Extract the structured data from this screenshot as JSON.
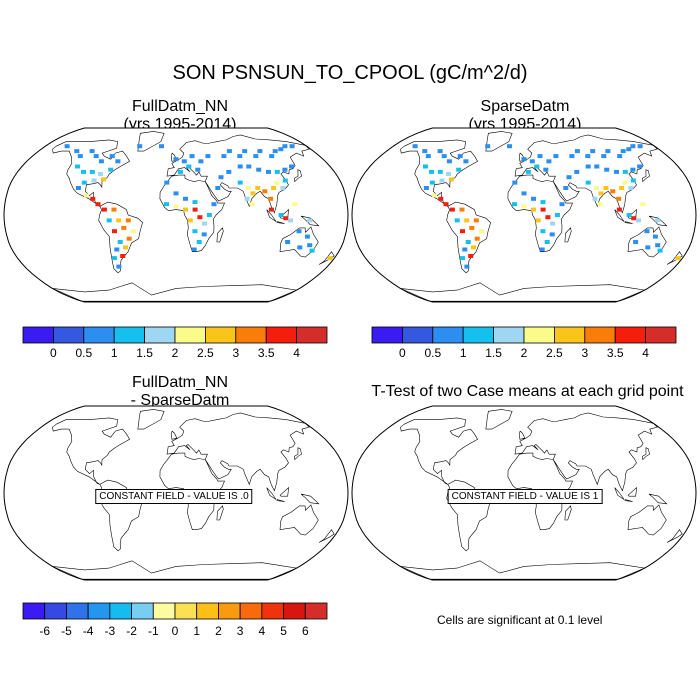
{
  "page_title": "SON PSNSUN_TO_CPOOL (gC/m^2/d)",
  "panels": {
    "top_left": {
      "title_line1": "FullDatm_NN",
      "title_line2": "(yrs 1995-2014)"
    },
    "top_right": {
      "title_line1": "SparseDatm",
      "title_line2": "(yrs 1995-2014)"
    },
    "bottom_left": {
      "title_line1": "FullDatm_NN",
      "title_line2": "- SparseDatm",
      "constant_field": "CONSTANT FIELD - VALUE IS .0"
    },
    "bottom_right": {
      "title_line1": "T-Test of two Case means at each grid point",
      "constant_field": "CONSTANT FIELD - VALUE IS 1"
    }
  },
  "note": "Cells are significant at 0.1 level",
  "colorbars": {
    "abs": {
      "colors": [
        "#3a1bf2",
        "#3558e0",
        "#2b8ef0",
        "#15c0ee",
        "#9fd7f2",
        "#fbfb8a",
        "#fbc41a",
        "#fa7d0a",
        "#f51d0c",
        "#d42d2a"
      ],
      "labels": [
        "0",
        "0.5",
        "1",
        "1.5",
        "2",
        "2.5",
        "3",
        "3.5",
        "4"
      ]
    },
    "diff": {
      "colors": [
        "#3a1bf2",
        "#3649e4",
        "#2f72ea",
        "#2396ef",
        "#16bcf0",
        "#78cdf3",
        "#fbfba0",
        "#fbe054",
        "#fbbf18",
        "#f99b0e",
        "#f86a0a",
        "#f0330c",
        "#d7160f",
        "#d42d2a"
      ],
      "labels": [
        "-6",
        "-5",
        "-4",
        "-3",
        "-2",
        "-1",
        "0",
        "1",
        "2",
        "3",
        "4",
        "5",
        "6"
      ]
    }
  },
  "chart_data": [
    {
      "type": "heatmap",
      "title": "FullDatm_NN",
      "subtitle": "(yrs 1995-2014)",
      "projection": "Robinson",
      "color_levels": [
        0,
        0.5,
        1,
        1.5,
        2,
        2.5,
        3,
        3.5,
        4
      ],
      "points": [
        {
          "lon": -150,
          "lat": 65,
          "v": 0.7
        },
        {
          "lon": -130,
          "lat": 60,
          "v": 0.6
        },
        {
          "lon": -120,
          "lat": 55,
          "v": 0.8
        },
        {
          "lon": -110,
          "lat": 60,
          "v": 0.5
        },
        {
          "lon": -100,
          "lat": 55,
          "v": 0.7
        },
        {
          "lon": -90,
          "lat": 50,
          "v": 0.9
        },
        {
          "lon": -80,
          "lat": 55,
          "v": 0.6
        },
        {
          "lon": -70,
          "lat": 50,
          "v": 0.8
        },
        {
          "lon": -115,
          "lat": 45,
          "v": 1.0
        },
        {
          "lon": -105,
          "lat": 40,
          "v": 1.2
        },
        {
          "lon": -95,
          "lat": 40,
          "v": 1.4
        },
        {
          "lon": -85,
          "lat": 38,
          "v": 1.6
        },
        {
          "lon": -80,
          "lat": 33,
          "v": 2.6
        },
        {
          "lon": -90,
          "lat": 32,
          "v": 1.8
        },
        {
          "lon": -100,
          "lat": 30,
          "v": 1.0
        },
        {
          "lon": -75,
          "lat": 42,
          "v": 1.2
        },
        {
          "lon": -105,
          "lat": 25,
          "v": 0.8
        },
        {
          "lon": -95,
          "lat": 18,
          "v": 2.2
        },
        {
          "lon": -88,
          "lat": 15,
          "v": 3.6
        },
        {
          "lon": -82,
          "lat": 10,
          "v": 3.8
        },
        {
          "lon": -75,
          "lat": 5,
          "v": 3.9
        },
        {
          "lon": -65,
          "lat": 5,
          "v": 3.2
        },
        {
          "lon": -70,
          "lat": -5,
          "v": 1.2
        },
        {
          "lon": -60,
          "lat": -5,
          "v": 2.8
        },
        {
          "lon": -50,
          "lat": -5,
          "v": 3.4
        },
        {
          "lon": -55,
          "lat": -12,
          "v": 3.0
        },
        {
          "lon": -65,
          "lat": -15,
          "v": 3.5
        },
        {
          "lon": -45,
          "lat": -15,
          "v": 2.4
        },
        {
          "lon": -50,
          "lat": -22,
          "v": 3.2
        },
        {
          "lon": -60,
          "lat": -25,
          "v": 1.0
        },
        {
          "lon": -55,
          "lat": -30,
          "v": 2.8
        },
        {
          "lon": -65,
          "lat": -32,
          "v": 0.8
        },
        {
          "lon": -60,
          "lat": -38,
          "v": 3.8
        },
        {
          "lon": -70,
          "lat": -40,
          "v": 1.4
        },
        {
          "lon": -68,
          "lat": -48,
          "v": 0.6
        },
        {
          "lon": -50,
          "lat": 65,
          "v": 0.5
        },
        {
          "lon": -20,
          "lat": 65,
          "v": 0.6
        },
        {
          "lon": 0,
          "lat": 52,
          "v": 0.7
        },
        {
          "lon": 10,
          "lat": 50,
          "v": 0.8
        },
        {
          "lon": 20,
          "lat": 55,
          "v": 0.7
        },
        {
          "lon": 30,
          "lat": 50,
          "v": 0.9
        },
        {
          "lon": 15,
          "lat": 45,
          "v": 1.0
        },
        {
          "lon": 25,
          "lat": 42,
          "v": 0.8
        },
        {
          "lon": 40,
          "lat": 55,
          "v": 0.6
        },
        {
          "lon": 5,
          "lat": 40,
          "v": 1.1
        },
        {
          "lon": -10,
          "lat": 30,
          "v": 0.8
        },
        {
          "lon": 0,
          "lat": 20,
          "v": 0.6
        },
        {
          "lon": 10,
          "lat": 15,
          "v": 0.9
        },
        {
          "lon": 20,
          "lat": 12,
          "v": 1.0
        },
        {
          "lon": -10,
          "lat": 10,
          "v": 1.4
        },
        {
          "lon": 0,
          "lat": 8,
          "v": 2.4
        },
        {
          "lon": 10,
          "lat": 5,
          "v": 2.8
        },
        {
          "lon": 20,
          "lat": 5,
          "v": 3.6
        },
        {
          "lon": 25,
          "lat": -2,
          "v": 3.9
        },
        {
          "lon": 15,
          "lat": -5,
          "v": 2.6
        },
        {
          "lon": 30,
          "lat": -8,
          "v": 1.6
        },
        {
          "lon": 35,
          "lat": 0,
          "v": 1.0
        },
        {
          "lon": 20,
          "lat": -15,
          "v": 1.0
        },
        {
          "lon": 30,
          "lat": -18,
          "v": 0.8
        },
        {
          "lon": 25,
          "lat": -25,
          "v": 1.2
        },
        {
          "lon": 20,
          "lat": -32,
          "v": 0.9
        },
        {
          "lon": 40,
          "lat": 10,
          "v": 0.7
        },
        {
          "lon": 45,
          "lat": 25,
          "v": 0.5
        },
        {
          "lon": 50,
          "lat": 35,
          "v": 0.8
        },
        {
          "lon": 60,
          "lat": 40,
          "v": 0.6
        },
        {
          "lon": 60,
          "lat": 55,
          "v": 0.7
        },
        {
          "lon": 70,
          "lat": 60,
          "v": 0.6
        },
        {
          "lon": 80,
          "lat": 55,
          "v": 0.5
        },
        {
          "lon": 90,
          "lat": 60,
          "v": 0.7
        },
        {
          "lon": 100,
          "lat": 55,
          "v": 0.6
        },
        {
          "lon": 110,
          "lat": 60,
          "v": 0.8
        },
        {
          "lon": 120,
          "lat": 55,
          "v": 0.7
        },
        {
          "lon": 130,
          "lat": 60,
          "v": 0.5
        },
        {
          "lon": 140,
          "lat": 62,
          "v": 0.6
        },
        {
          "lon": 150,
          "lat": 65,
          "v": 0.5
        },
        {
          "lon": 160,
          "lat": 65,
          "v": 0.6
        },
        {
          "lon": 75,
          "lat": 45,
          "v": 0.7
        },
        {
          "lon": 85,
          "lat": 45,
          "v": 0.9
        },
        {
          "lon": 95,
          "lat": 42,
          "v": 0.6
        },
        {
          "lon": 105,
          "lat": 40,
          "v": 0.8
        },
        {
          "lon": 115,
          "lat": 40,
          "v": 1.0
        },
        {
          "lon": 125,
          "lat": 42,
          "v": 0.9
        },
        {
          "lon": 135,
          "lat": 45,
          "v": 0.7
        },
        {
          "lon": 70,
          "lat": 30,
          "v": 1.2
        },
        {
          "lon": 78,
          "lat": 25,
          "v": 2.4
        },
        {
          "lon": 82,
          "lat": 20,
          "v": 2.8
        },
        {
          "lon": 88,
          "lat": 25,
          "v": 2.6
        },
        {
          "lon": 75,
          "lat": 15,
          "v": 1.8
        },
        {
          "lon": 80,
          "lat": 10,
          "v": 2.2
        },
        {
          "lon": 95,
          "lat": 22,
          "v": 3.0
        },
        {
          "lon": 100,
          "lat": 15,
          "v": 3.4
        },
        {
          "lon": 105,
          "lat": 25,
          "v": 2.6
        },
        {
          "lon": 110,
          "lat": 30,
          "v": 2.2
        },
        {
          "lon": 115,
          "lat": 25,
          "v": 1.8
        },
        {
          "lon": 120,
          "lat": 32,
          "v": 1.4
        },
        {
          "lon": 100,
          "lat": 5,
          "v": 3.8
        },
        {
          "lon": 110,
          "lat": 0,
          "v": 1.2
        },
        {
          "lon": 115,
          "lat": -3,
          "v": 3.6
        },
        {
          "lon": 120,
          "lat": -5,
          "v": 1.6
        },
        {
          "lon": 140,
          "lat": -5,
          "v": 1.6
        },
        {
          "lon": 125,
          "lat": 10,
          "v": 2.2
        },
        {
          "lon": 130,
          "lat": -15,
          "v": 0.8
        },
        {
          "lon": 140,
          "lat": -20,
          "v": 0.7
        },
        {
          "lon": 120,
          "lat": -25,
          "v": 0.6
        },
        {
          "lon": 145,
          "lat": -28,
          "v": 0.9
        },
        {
          "lon": 150,
          "lat": -33,
          "v": 1.2
        },
        {
          "lon": 135,
          "lat": -30,
          "v": 0.5
        },
        {
          "lon": 175,
          "lat": -40,
          "v": 2.6
        }
      ]
    },
    {
      "type": "heatmap",
      "title": "SparseDatm",
      "subtitle": "(yrs 1995-2014)",
      "projection": "Robinson",
      "color_levels": [
        0,
        0.5,
        1,
        1.5,
        2,
        2.5,
        3,
        3.5,
        4
      ],
      "same_as_first": true
    },
    {
      "type": "heatmap",
      "title": "FullDatm_NN - SparseDatm",
      "projection": "Robinson",
      "color_levels": [
        -6,
        -5,
        -4,
        -3,
        -2,
        -1,
        0,
        1,
        2,
        3,
        4,
        5,
        6
      ],
      "constant_value": 0
    },
    {
      "type": "heatmap",
      "title": "T-Test of two Case means at each grid point",
      "projection": "Robinson",
      "constant_value": 1
    }
  ]
}
